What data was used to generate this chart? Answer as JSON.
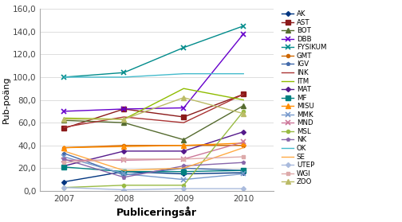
{
  "years": [
    2007,
    2008,
    2009,
    2010
  ],
  "series": {
    "AK": {
      "values": [
        8,
        17,
        15,
        16
      ],
      "color": "#003580",
      "marker": "D",
      "markersize": 3
    },
    "AST": {
      "values": [
        55,
        72,
        65,
        85
      ],
      "color": "#8B1A1A",
      "marker": "s",
      "markersize": 4
    },
    "BOT": {
      "values": [
        62,
        60,
        45,
        75
      ],
      "color": "#556B2F",
      "marker": "^",
      "markersize": 4
    },
    "DBB": {
      "values": [
        70,
        72,
        73,
        138
      ],
      "color": "#6600cc",
      "marker": "x",
      "markersize": 5
    },
    "FYSIKUM": {
      "values": [
        100,
        104,
        126,
        145
      ],
      "color": "#008B8B",
      "marker": "x",
      "markersize": 5
    },
    "GMT": {
      "values": [
        38,
        40,
        40,
        40
      ],
      "color": "#cd6600",
      "marker": "o",
      "markersize": 3
    },
    "IGV": {
      "values": [
        33,
        14,
        20,
        18
      ],
      "color": "#4169aa",
      "marker": "p",
      "markersize": 3
    },
    "INK": {
      "values": [
        56,
        65,
        60,
        85
      ],
      "color": "#aa3333",
      "marker": "None",
      "markersize": 4
    },
    "ITM": {
      "values": [
        64,
        63,
        90,
        80
      ],
      "color": "#8fbc00",
      "marker": "None",
      "markersize": 4
    },
    "MAT": {
      "values": [
        22,
        35,
        35,
        52
      ],
      "color": "#551A8B",
      "marker": "D",
      "markersize": 3
    },
    "MF": {
      "values": [
        21,
        17,
        17,
        18
      ],
      "color": "#008080",
      "marker": "s",
      "markersize": 4
    },
    "MISU": {
      "values": [
        38,
        39,
        40,
        42
      ],
      "color": "#ff8c00",
      "marker": "^",
      "markersize": 4
    },
    "MMK": {
      "values": [
        30,
        15,
        10,
        15
      ],
      "color": "#7799cc",
      "marker": "x",
      "markersize": 5
    },
    "MND": {
      "values": [
        27,
        27,
        28,
        43
      ],
      "color": "#cc7799",
      "marker": "x",
      "markersize": 5
    },
    "MSL": {
      "values": [
        3,
        5,
        5,
        70
      ],
      "color": "#99bb44",
      "marker": "o",
      "markersize": 3
    },
    "NK": {
      "values": [
        28,
        12,
        22,
        25
      ],
      "color": "#8866aa",
      "marker": "p",
      "markersize": 3
    },
    "OK": {
      "values": [
        100,
        100,
        103,
        103
      ],
      "color": "#44bbcc",
      "marker": "None",
      "markersize": 4
    },
    "SE": {
      "values": [
        35,
        18,
        20,
        38
      ],
      "color": "#ffaa44",
      "marker": "None",
      "markersize": 4
    },
    "UTEP": {
      "values": [
        3,
        1,
        2,
        2
      ],
      "color": "#aabbdd",
      "marker": "D",
      "markersize": 3
    },
    "WGI": {
      "values": [
        25,
        28,
        28,
        30
      ],
      "color": "#ddaaaa",
      "marker": "s",
      "markersize": 3
    },
    "ZOO": {
      "values": [
        63,
        63,
        82,
        68
      ],
      "color": "#bbbb66",
      "marker": "^",
      "markersize": 4
    }
  },
  "ylabel": "Pub-poäng",
  "xlabel": "Publiceringsår",
  "ylim": [
    0,
    160
  ],
  "yticks": [
    0,
    20,
    40,
    60,
    80,
    100,
    120,
    140,
    160
  ],
  "ytick_labels": [
    "0,0",
    "20,0",
    "40,0",
    "60,0",
    "80,0",
    "100,0",
    "120,0",
    "140,0",
    "160,0"
  ],
  "background_color": "#ffffff",
  "grid_color": "#d0d0d0"
}
